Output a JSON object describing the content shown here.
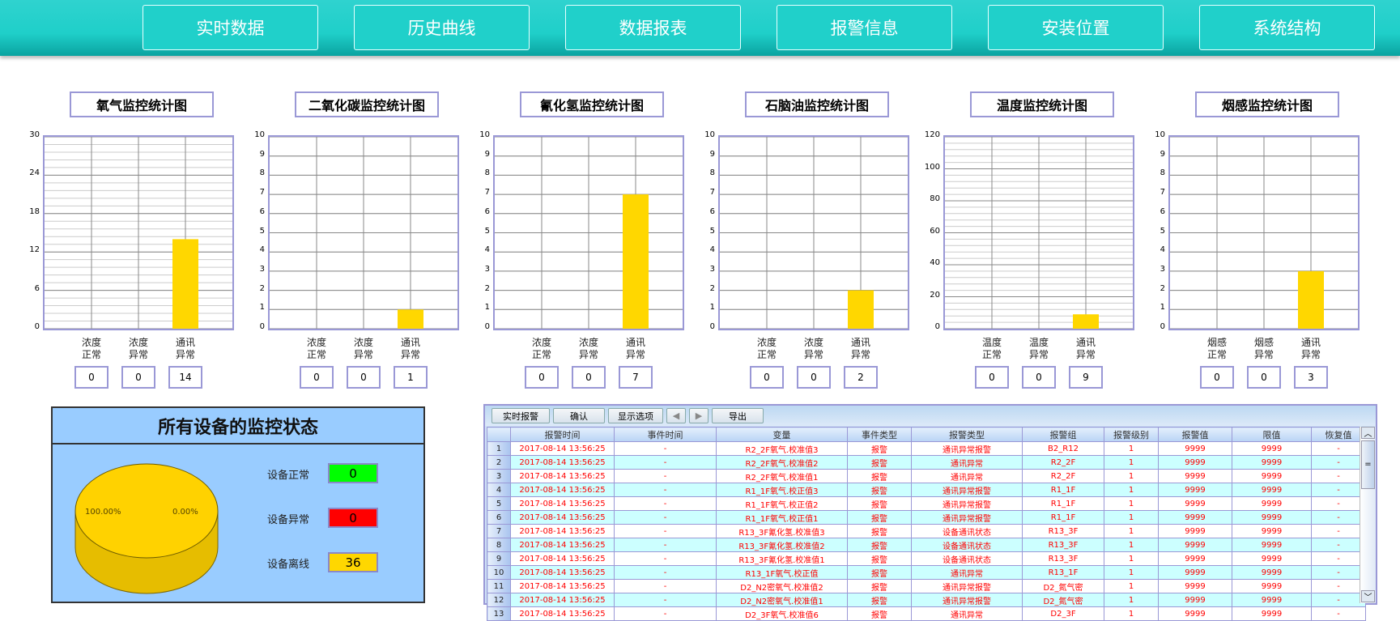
{
  "nav": [
    "实时数据",
    "历史曲线",
    "数据报表",
    "报警信息",
    "安装位置",
    "系统结构"
  ],
  "chart_data": [
    {
      "type": "bar",
      "title": "氧气监控统计图",
      "categories": [
        "浓度\n正常",
        "浓度\n异常",
        "通讯\n异常"
      ],
      "values": [
        0,
        0,
        14
      ],
      "ylim": [
        0,
        30
      ],
      "yticks": [
        0,
        6,
        12,
        18,
        24,
        30
      ],
      "minor": 1.2,
      "color": "#ffd700"
    },
    {
      "type": "bar",
      "title": "二氧化碳监控统计图",
      "categories": [
        "浓度\n正常",
        "浓度\n异常",
        "通讯\n异常"
      ],
      "values": [
        0,
        0,
        1
      ],
      "ylim": [
        0,
        10
      ],
      "yticks": [
        0,
        1,
        2,
        3,
        4,
        5,
        6,
        7,
        8,
        9,
        10
      ],
      "minor": 1,
      "color": "#ffd700"
    },
    {
      "type": "bar",
      "title": "氰化氢监控统计图",
      "categories": [
        "浓度\n正常",
        "浓度\n异常",
        "通讯\n异常"
      ],
      "values": [
        0,
        0,
        7
      ],
      "ylim": [
        0,
        10
      ],
      "yticks": [
        0,
        1,
        2,
        3,
        4,
        5,
        6,
        7,
        8,
        9,
        10
      ],
      "minor": 1,
      "color": "#ffd700"
    },
    {
      "type": "bar",
      "title": "石脑油监控统计图",
      "categories": [
        "浓度\n正常",
        "浓度\n异常",
        "通讯\n异常"
      ],
      "values": [
        0,
        0,
        2
      ],
      "ylim": [
        0,
        10
      ],
      "yticks": [
        0,
        1,
        2,
        3,
        4,
        5,
        6,
        7,
        8,
        9,
        10
      ],
      "minor": 1,
      "color": "#ffd700"
    },
    {
      "type": "bar",
      "title": "温度监控统计图",
      "categories": [
        "温度\n正常",
        "温度\n异常",
        "通讯\n异常"
      ],
      "values": [
        0,
        0,
        9
      ],
      "ylim": [
        0,
        120
      ],
      "yticks": [
        0,
        20,
        40,
        60,
        80,
        100,
        120
      ],
      "minor": 4,
      "color": "#ffd700"
    },
    {
      "type": "bar",
      "title": "烟感监控统计图",
      "categories": [
        "烟感\n正常",
        "烟感\n异常",
        "通讯\n异常"
      ],
      "values": [
        0,
        0,
        3
      ],
      "ylim": [
        0,
        10
      ],
      "yticks": [
        0,
        1,
        2,
        3,
        4,
        5,
        6,
        7,
        8,
        9,
        10
      ],
      "minor": 1,
      "color": "#ffd700"
    }
  ],
  "status": {
    "title": "所有设备的监控状态",
    "pie_labels": [
      "100.00%",
      "0.00%"
    ],
    "items": [
      {
        "label": "设备正常",
        "value": "0",
        "color": "#00ff00"
      },
      {
        "label": "设备异常",
        "value": "0",
        "color": "#ff0000"
      },
      {
        "label": "设备离线",
        "value": "36",
        "color": "#ffd700"
      }
    ]
  },
  "alarm": {
    "toolbar": [
      "实时报警",
      "确认",
      "显示选项",
      "◀",
      "▶",
      "导出"
    ],
    "columns": [
      "",
      "报警时间",
      "事件时间",
      "变量",
      "事件类型",
      "报警类型",
      "报警组",
      "报警级别",
      "报警值",
      "限值",
      "恢复值"
    ],
    "rows": [
      [
        "1",
        "2017-08-14 13:56:25",
        "-",
        "R2_2F氧气.校准值3",
        "报警",
        "通讯异常报警",
        "B2_R12",
        "1",
        "9999",
        "9999",
        "-"
      ],
      [
        "2",
        "2017-08-14 13:56:25",
        "-",
        "R2_2F氧气.校准值2",
        "报警",
        "通讯异常",
        "R2_2F",
        "1",
        "9999",
        "9999",
        "-"
      ],
      [
        "3",
        "2017-08-14 13:56:25",
        "-",
        "R2_2F氧气.校准值1",
        "报警",
        "通讯异常",
        "R2_2F",
        "1",
        "9999",
        "9999",
        "-"
      ],
      [
        "4",
        "2017-08-14 13:56:25",
        "-",
        "R1_1F氧气.校正值3",
        "报警",
        "通讯异常报警",
        "R1_1F",
        "1",
        "9999",
        "9999",
        "-"
      ],
      [
        "5",
        "2017-08-14 13:56:25",
        "-",
        "R1_1F氧气.校正值2",
        "报警",
        "通讯异常报警",
        "R1_1F",
        "1",
        "9999",
        "9999",
        "-"
      ],
      [
        "6",
        "2017-08-14 13:56:25",
        "-",
        "R1_1F氧气.校正值1",
        "报警",
        "通讯异常报警",
        "R1_1F",
        "1",
        "9999",
        "9999",
        "-"
      ],
      [
        "7",
        "2017-08-14 13:56:25",
        "-",
        "R13_3F氰化氢.校准值3",
        "报警",
        "设备通讯状态",
        "R13_3F",
        "1",
        "9999",
        "9999",
        "-"
      ],
      [
        "8",
        "2017-08-14 13:56:25",
        "-",
        "R13_3F氰化氢.校准值2",
        "报警",
        "设备通讯状态",
        "R13_3F",
        "1",
        "9999",
        "9999",
        "-"
      ],
      [
        "9",
        "2017-08-14 13:56:25",
        "-",
        "R13_3F氰化氢.校准值1",
        "报警",
        "设备通讯状态",
        "R13_3F",
        "1",
        "9999",
        "9999",
        "-"
      ],
      [
        "10",
        "2017-08-14 13:56:25",
        "-",
        "R13_1F氧气.校正值",
        "报警",
        "通讯异常",
        "R13_1F",
        "1",
        "9999",
        "9999",
        "-"
      ],
      [
        "11",
        "2017-08-14 13:56:25",
        "-",
        "D2_N2密氧气.校准值2",
        "报警",
        "通讯异常报警",
        "D2_氮气密",
        "1",
        "9999",
        "9999",
        "-"
      ],
      [
        "12",
        "2017-08-14 13:56:25",
        "-",
        "D2_N2密氧气.校准值1",
        "报警",
        "通讯异常报警",
        "D2_氮气密",
        "1",
        "9999",
        "9999",
        "-"
      ],
      [
        "13",
        "2017-08-14 13:56:25",
        "-",
        "D2_3F氧气.校准值6",
        "报警",
        "通讯异常",
        "D2_3F",
        "1",
        "9999",
        "9999",
        "-"
      ]
    ]
  }
}
